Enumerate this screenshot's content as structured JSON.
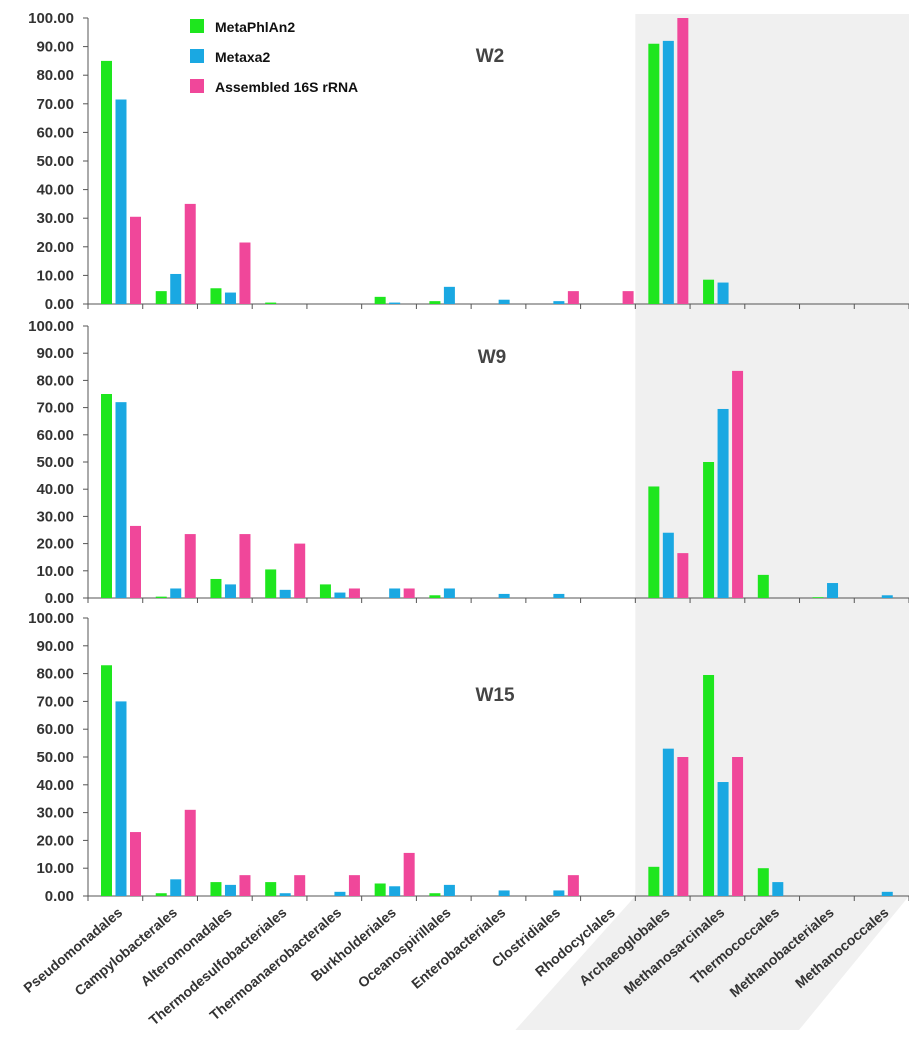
{
  "chart_data": {
    "type": "bar",
    "categories": [
      "Pseudomonadales",
      "Campylobacterales",
      "Alteromonadales",
      "Thermodesulfobacteriales",
      "Thermoanaerobacterales",
      "Burkholderiales",
      "Oceanospirillales",
      "Enterobacteriales",
      "Clostridiales",
      "Rhodocyclales",
      "Archaeoglobales",
      "Methanosarcinales",
      "Thermococcales",
      "Methanobacteriales",
      "Methanococcales"
    ],
    "series_meta": [
      {
        "name": "MetaPhlAn2",
        "color": "#1ee61e"
      },
      {
        "name": "Metaxa2",
        "color": "#1aa8e2"
      },
      {
        "name": "Assembled 16S rRNA",
        "color": "#f0479a"
      }
    ],
    "ylim": [
      0,
      100
    ],
    "yticks": [
      "0.00",
      "10.00",
      "20.00",
      "30.00",
      "40.00",
      "50.00",
      "60.00",
      "70.00",
      "80.00",
      "90.00",
      "100.00"
    ],
    "highlight_start_category": "Archaeoglobales",
    "highlight_color": "#f0f0f0",
    "legend_position": "top-left",
    "panels": [
      {
        "title": "W2",
        "series": [
          {
            "name": "MetaPhlAn2",
            "values": [
              85,
              4.5,
              5.5,
              0.5,
              0,
              2.5,
              1,
              0,
              0,
              0,
              91,
              8.5,
              0,
              0,
              0
            ]
          },
          {
            "name": "Metaxa2",
            "values": [
              71.5,
              10.5,
              4,
              0,
              0,
              0.5,
              6,
              1.5,
              1,
              0,
              92,
              7.5,
              0,
              0,
              0
            ]
          },
          {
            "name": "Assembled 16S rRNA",
            "values": [
              30.5,
              35,
              21.5,
              0,
              0,
              0,
              0,
              0,
              4.5,
              4.5,
              100,
              0,
              0,
              0,
              0
            ]
          }
        ]
      },
      {
        "title": "W9",
        "series": [
          {
            "name": "MetaPhlAn2",
            "values": [
              75,
              0.5,
              7,
              10.5,
              5,
              0,
              1,
              0,
              0,
              0,
              41,
              50,
              8.5,
              0.3,
              0
            ]
          },
          {
            "name": "Metaxa2",
            "values": [
              72,
              3.5,
              5,
              3,
              2,
              3.5,
              3.5,
              1.5,
              1.5,
              0,
              24,
              69.5,
              0,
              5.5,
              1
            ]
          },
          {
            "name": "Assembled 16S rRNA",
            "values": [
              26.5,
              23.5,
              23.5,
              20,
              3.5,
              3.5,
              0,
              0,
              0,
              0,
              16.5,
              83.5,
              0,
              0,
              0
            ]
          }
        ]
      },
      {
        "title": "W15",
        "series": [
          {
            "name": "MetaPhlAn2",
            "values": [
              83,
              1,
              5,
              5,
              0,
              4.5,
              1,
              0,
              0,
              0,
              10.5,
              79.5,
              10,
              0,
              0
            ]
          },
          {
            "name": "Metaxa2",
            "values": [
              70,
              6,
              4,
              1,
              1.5,
              3.5,
              4,
              2,
              2,
              0,
              53,
              41,
              5,
              0,
              1.5
            ]
          },
          {
            "name": "Assembled 16S rRNA",
            "values": [
              23,
              31,
              7.5,
              7.5,
              7.5,
              15.5,
              0,
              0,
              7.5,
              0,
              50,
              50,
              0,
              0,
              0
            ]
          }
        ]
      }
    ]
  }
}
